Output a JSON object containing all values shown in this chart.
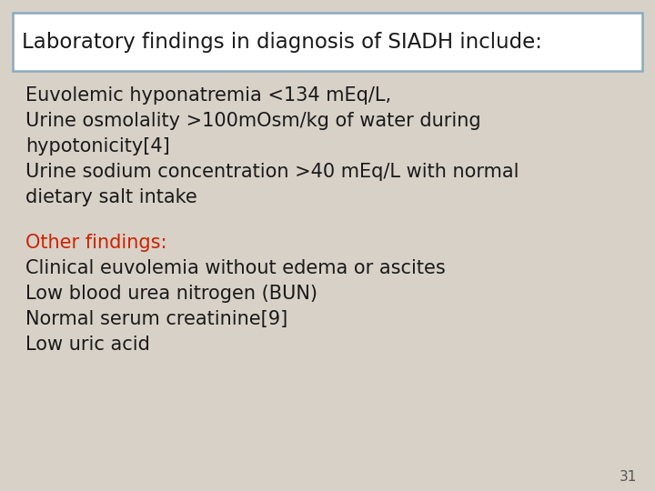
{
  "background_color": "#d8d1c7",
  "title": "Laboratory findings in diagnosis of SIADH include:",
  "title_box_color": "#ffffff",
  "title_box_edge_color": "#8aaabf",
  "title_fontsize": 16.5,
  "body_lines": [
    "Euvolemic hyponatremia <134 mEq/L,",
    "Urine osmolality >100mOsm/kg of water during",
    "hypotonicity[4]",
    "Urine sodium concentration >40 mEq/L with normal",
    "dietary salt intake"
  ],
  "body_color": "#1a1a1a",
  "body_fontsize": 15,
  "other_heading": "Other findings:",
  "other_heading_color": "#cc2200",
  "other_lines": [
    "Clinical euvolemia without edema or ascites",
    "Low blood urea nitrogen (BUN)",
    "Normal serum creatinine[9]",
    "Low uric acid"
  ],
  "other_color": "#1a1a1a",
  "other_fontsize": 15,
  "page_number": "31",
  "page_number_color": "#555555",
  "page_number_fontsize": 11
}
